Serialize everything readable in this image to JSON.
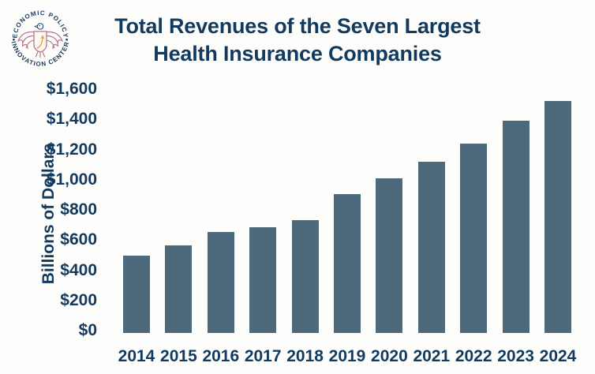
{
  "page": {
    "background": "#fdfdfb"
  },
  "logo": {
    "alt": "Economic Policy Innovation Center seal",
    "arc_text_top": "ECONOMIC POLICY",
    "arc_text_bottom": "INNOVATION CENTER",
    "text_color": "#16395c",
    "eagle_color": "#b36d82",
    "arrow_color": "#e9a23b",
    "shield_fill": "#fbf7f3"
  },
  "chart_data": {
    "type": "bar",
    "title": "Total Revenues of the Seven Largest Health Insurance Companies",
    "title_lines": [
      "Total Revenues of the Seven Largest",
      "Health Insurance Companies"
    ],
    "ylabel": "Billions of Dollars",
    "xlabel": "",
    "categories": [
      "2014",
      "2015",
      "2016",
      "2017",
      "2018",
      "2019",
      "2020",
      "2021",
      "2022",
      "2023",
      "2024"
    ],
    "values": [
      510,
      580,
      665,
      700,
      745,
      915,
      1020,
      1130,
      1250,
      1400,
      1530
    ],
    "units": "billions of dollars",
    "y_ticks": [
      1600,
      1400,
      1200,
      1000,
      800,
      600,
      400,
      200,
      0
    ],
    "y_tick_labels": [
      "$1,600",
      "$1,400",
      "$1,200",
      "$1,000",
      "$800",
      "$600",
      "$400",
      "$200",
      "$0"
    ],
    "ylim": [
      0,
      1600
    ],
    "grid": false,
    "legend_position": "none",
    "bar_color": "#4d697c",
    "text_color": "#123a5e",
    "background_color": "#fdfdfb"
  }
}
